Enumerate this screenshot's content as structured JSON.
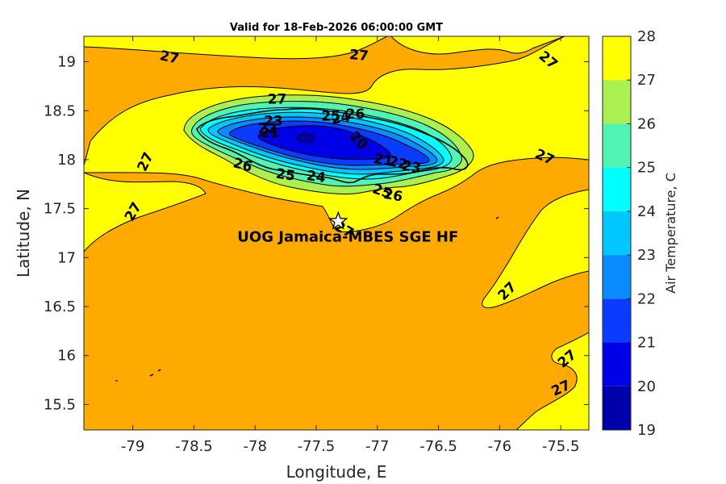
{
  "chart_data": {
    "type": "contour",
    "title": "Valid for 18-Feb-2026 06:00:00 GMT",
    "xlabel": "Longitude, E",
    "ylabel": "Latitude, N",
    "xlim": [
      -79.4,
      -75.27
    ],
    "ylim": [
      15.24,
      19.26
    ],
    "xticks": [
      -79,
      -78.5,
      -78,
      -77.5,
      -77,
      -76.5,
      -76,
      -75.5
    ],
    "yticks": [
      15.5,
      16,
      16.5,
      17,
      17.5,
      18,
      18.5,
      19
    ],
    "xtick_labels": [
      "-79",
      "-78.5",
      "-78",
      "-77.5",
      "-77",
      "-76.5",
      "-76",
      "-75.5"
    ],
    "ytick_labels": [
      "15.5",
      "16",
      "16.5",
      "17",
      "17.5",
      "18",
      "18.5",
      "19"
    ],
    "colorbar": {
      "label": "Air Temperature, C",
      "levels": [
        19,
        20,
        21,
        22,
        23,
        24,
        25,
        26,
        27,
        28
      ],
      "tick_labels": [
        "19",
        "20",
        "21",
        "22",
        "23",
        "24",
        "25",
        "26",
        "27",
        "28"
      ],
      "colors": [
        "#0000aa",
        "#0000e6",
        "#0a3cff",
        "#0a8cff",
        "#00c8ff",
        "#00ffff",
        "#50f5b4",
        "#aaf050",
        "#ffff00",
        "#ffaa00",
        "#ff5500"
      ]
    },
    "contour_labels": [
      {
        "text": "27",
        "lon": -78.7,
        "lat": 19.05,
        "rot": 12
      },
      {
        "text": "27",
        "lon": -77.15,
        "lat": 19.07,
        "rot": 5
      },
      {
        "text": "27",
        "lon": -75.6,
        "lat": 19.02,
        "rot": 40
      },
      {
        "text": "27",
        "lon": -77.82,
        "lat": 18.62,
        "rot": 0
      },
      {
        "text": "27",
        "lon": -78.9,
        "lat": 17.98,
        "rot": -65
      },
      {
        "text": "27",
        "lon": -79.0,
        "lat": 17.47,
        "rot": -60
      },
      {
        "text": "27",
        "lon": -75.63,
        "lat": 18.03,
        "rot": 25
      },
      {
        "text": "27",
        "lon": -75.94,
        "lat": 16.66,
        "rot": -45
      },
      {
        "text": "27",
        "lon": -75.45,
        "lat": 15.97,
        "rot": -40
      },
      {
        "text": "27",
        "lon": -75.5,
        "lat": 15.67,
        "rot": -25
      },
      {
        "text": "27",
        "lon": -77.27,
        "lat": 17.29,
        "rot": 30
      },
      {
        "text": "26",
        "lon": -77.18,
        "lat": 18.47,
        "rot": 0
      },
      {
        "text": "26",
        "lon": -78.1,
        "lat": 17.95,
        "rot": 15
      },
      {
        "text": "26",
        "lon": -76.87,
        "lat": 17.64,
        "rot": 10
      },
      {
        "text": "25",
        "lon": -77.38,
        "lat": 18.45,
        "rot": 0
      },
      {
        "text": "25",
        "lon": -77.75,
        "lat": 17.85,
        "rot": 8
      },
      {
        "text": "25",
        "lon": -76.96,
        "lat": 17.68,
        "rot": 20
      },
      {
        "text": "24",
        "lon": -77.3,
        "lat": 18.43,
        "rot": -10
      },
      {
        "text": "24",
        "lon": -77.5,
        "lat": 17.83,
        "rot": 8
      },
      {
        "text": "23",
        "lon": -77.85,
        "lat": 18.4,
        "rot": 0
      },
      {
        "text": "23",
        "lon": -76.72,
        "lat": 17.93,
        "rot": 10
      },
      {
        "text": "22",
        "lon": -77.9,
        "lat": 18.32,
        "rot": 0
      },
      {
        "text": "22",
        "lon": -76.83,
        "lat": 17.97,
        "rot": 15
      },
      {
        "text": "21",
        "lon": -77.88,
        "lat": 18.28,
        "rot": 0
      },
      {
        "text": "21",
        "lon": -76.95,
        "lat": 18.0,
        "rot": 10
      },
      {
        "text": "20",
        "lon": -77.15,
        "lat": 18.2,
        "rot": 45
      }
    ],
    "stations": [
      {
        "name": "UOG Jamaica-MBES SGE HF",
        "lon": -77.32,
        "lat": 17.37
      }
    ]
  }
}
